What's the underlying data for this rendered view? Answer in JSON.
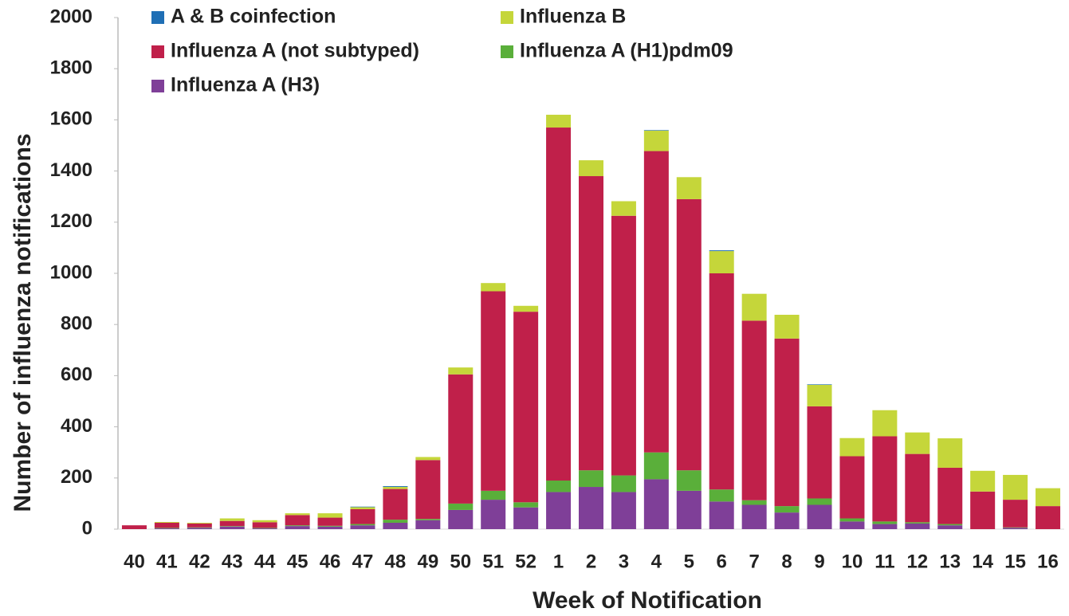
{
  "chart_data": {
    "type": "stacked_bar",
    "x_label": "Week of Notification",
    "y_label": "Number of  influenza notifications",
    "categories": [
      "40",
      "41",
      "42",
      "43",
      "44",
      "45",
      "46",
      "47",
      "48",
      "49",
      "50",
      "51",
      "52",
      "1",
      "2",
      "3",
      "4",
      "5",
      "6",
      "7",
      "8",
      "9",
      "10",
      "11",
      "12",
      "13",
      "14",
      "15",
      "16"
    ],
    "series": [
      {
        "name": "A & B coinfection",
        "color": "#1f6fb5",
        "values": [
          0,
          0,
          0,
          0,
          0,
          0,
          0,
          2,
          3,
          0,
          0,
          0,
          0,
          0,
          0,
          0,
          2,
          0,
          3,
          0,
          0,
          2,
          0,
          0,
          0,
          0,
          0,
          0,
          0
        ]
      },
      {
        "name": "Influenza B",
        "color": "#c5d63a",
        "values": [
          0,
          3,
          3,
          10,
          8,
          7,
          17,
          8,
          8,
          12,
          27,
          32,
          23,
          50,
          62,
          57,
          80,
          86,
          87,
          105,
          93,
          84,
          71,
          102,
          84,
          115,
          81,
          97,
          70
        ]
      },
      {
        "name": "Influenza A (not subtyped)",
        "color": "#c0204a",
        "values": [
          15,
          20,
          15,
          20,
          22,
          40,
          32,
          58,
          120,
          230,
          505,
          780,
          745,
          1380,
          1150,
          1015,
          1178,
          1060,
          845,
          702,
          655,
          360,
          243,
          333,
          267,
          220,
          147,
          108,
          90
        ]
      },
      {
        "name": "Influenza A (H1)pdm09",
        "color": "#5aaf3a",
        "values": [
          0,
          2,
          2,
          2,
          2,
          3,
          3,
          5,
          12,
          5,
          25,
          35,
          20,
          45,
          65,
          65,
          105,
          80,
          47,
          18,
          25,
          25,
          12,
          10,
          5,
          5,
          0,
          2,
          0
        ]
      },
      {
        "name": "Influenza A (H3)",
        "color": "#7f3f98",
        "values": [
          0,
          3,
          5,
          10,
          3,
          12,
          10,
          15,
          25,
          35,
          75,
          115,
          85,
          145,
          165,
          145,
          195,
          150,
          108,
          95,
          65,
          95,
          30,
          20,
          22,
          15,
          0,
          5,
          0
        ]
      }
    ],
    "ylim": [
      0,
      2000
    ],
    "yticks": [
      0,
      200,
      400,
      600,
      800,
      1000,
      1200,
      1400,
      1600,
      1800,
      2000
    ]
  }
}
